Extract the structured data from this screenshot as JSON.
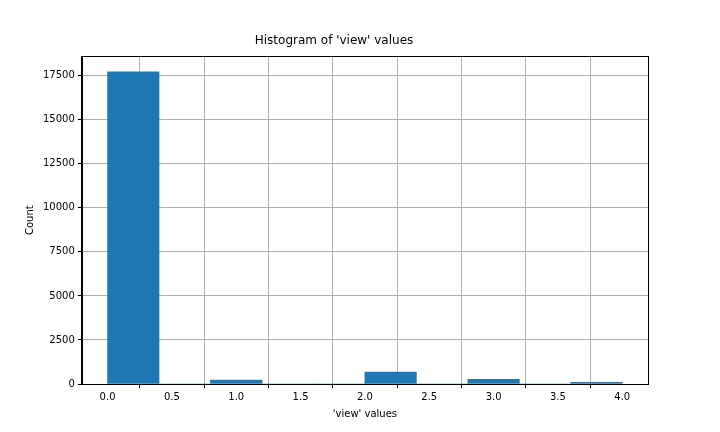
{
  "chart_data": {
    "type": "histogram",
    "title": "Histogram of 'view' values",
    "x_label": "'view' values",
    "y_label": "Count",
    "bins": [
      0.0,
      0.4,
      0.8,
      1.2,
      1.6,
      2.0,
      2.4,
      2.8,
      3.2,
      3.6,
      4.0
    ],
    "values": [
      17720,
      0,
      220,
      0,
      0,
      680,
      0,
      260,
      0,
      100
    ],
    "color": "#1f77b4",
    "xlim": [
      -0.2,
      4.2
    ],
    "xticks": [
      {
        "value": 0,
        "label": "0.0"
      },
      {
        "value": 0.5,
        "label": "0.5"
      },
      {
        "value": 1,
        "label": "1.0"
      },
      {
        "value": 1.5,
        "label": "1.5"
      },
      {
        "value": 2,
        "label": "2.0"
      },
      {
        "value": 2.5,
        "label": "2.5"
      },
      {
        "value": 3,
        "label": "3.0"
      },
      {
        "value": 3.5,
        "label": "3.5"
      },
      {
        "value": 4,
        "label": "4.0"
      }
    ],
    "ylim": [
      0,
      18600
    ],
    "yticks": [
      0,
      2500,
      5000,
      7500,
      10000,
      12500,
      15000,
      17500
    ],
    "grid": true
  }
}
